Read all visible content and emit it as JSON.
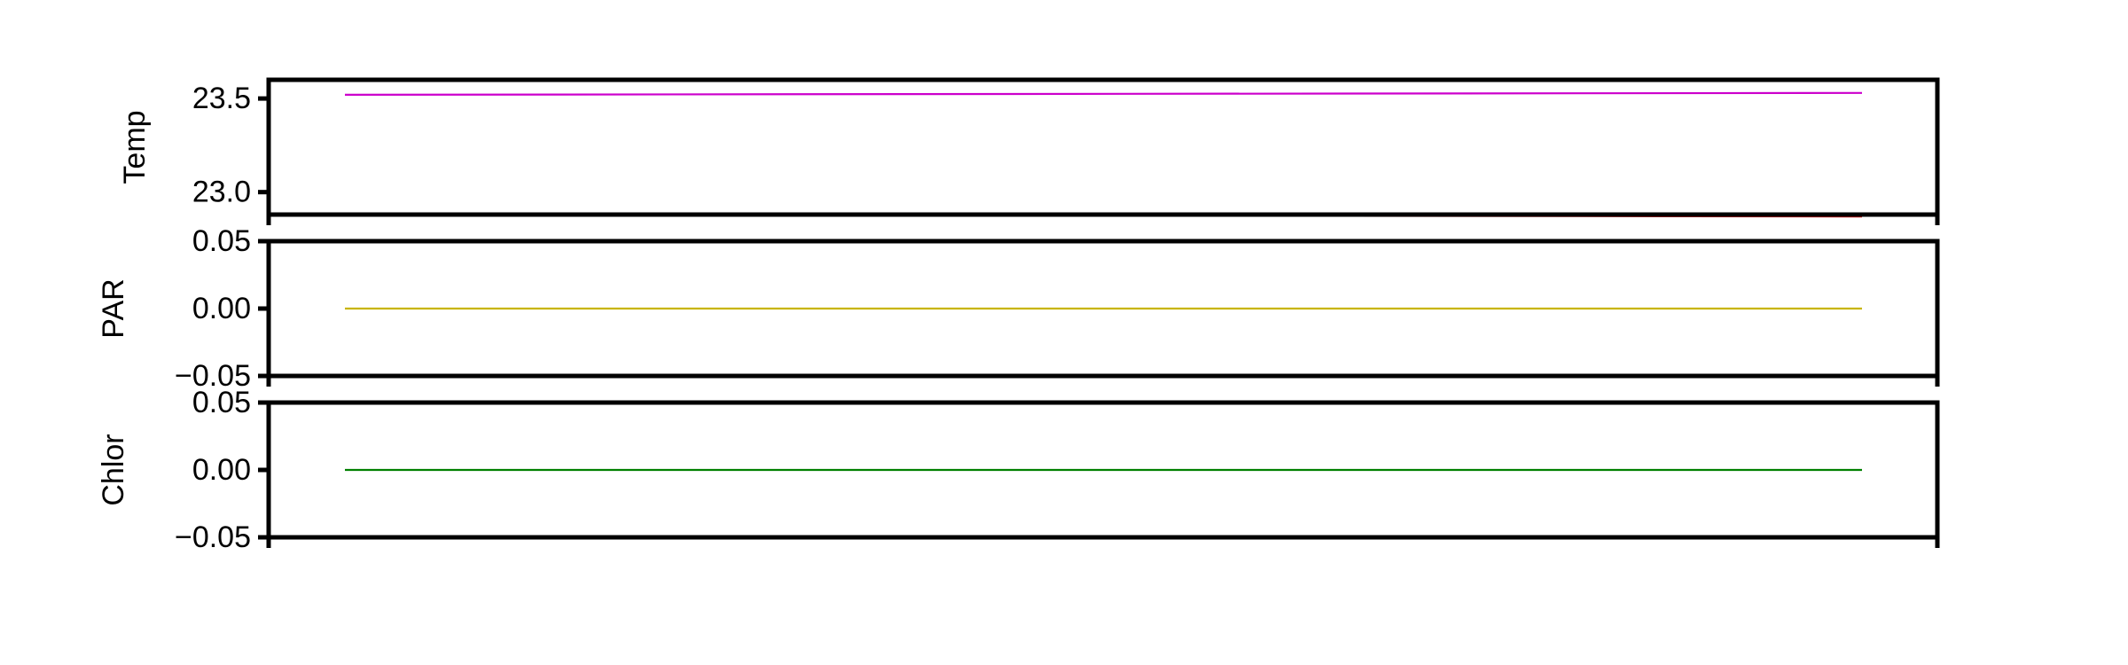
{
  "chart_data": [
    {
      "type": "line",
      "ylabel": "Temp",
      "ylim": [
        22.88,
        23.6
      ],
      "yticks": [
        23.0,
        23.5
      ],
      "ytick_labels": [
        "23.0",
        "23.5"
      ],
      "x": [
        0,
        1
      ],
      "series": [
        {
          "color": "#cc00cc",
          "values": [
            23.52,
            23.53
          ]
        },
        {
          "color": "#e00000",
          "values": [
            22.88,
            22.87
          ]
        }
      ]
    },
    {
      "type": "line",
      "ylabel": "PAR",
      "ylim": [
        -0.05,
        0.05
      ],
      "yticks": [
        0.05,
        0.0,
        -0.05
      ],
      "ytick_labels": [
        "0.05",
        "0.00",
        "−0.05"
      ],
      "x": [
        0,
        1
      ],
      "series": [
        {
          "color": "#c8b400",
          "values": [
            0.0,
            0.0
          ]
        }
      ]
    },
    {
      "type": "line",
      "ylabel": "Chlor",
      "ylim": [
        -0.05,
        0.05
      ],
      "yticks": [
        0.05,
        0.0,
        -0.05
      ],
      "ytick_labels": [
        "0.05",
        "0.00",
        "−0.05"
      ],
      "x": [
        0,
        1
      ],
      "series": [
        {
          "color": "#008000",
          "values": [
            0.0,
            0.0
          ]
        }
      ]
    }
  ]
}
